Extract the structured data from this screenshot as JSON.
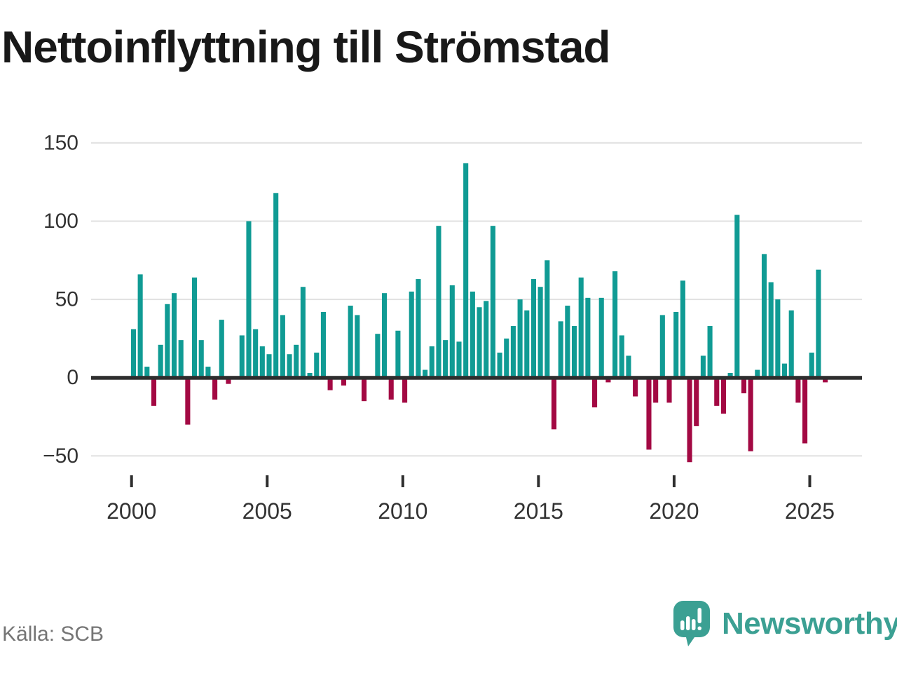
{
  "title": "Nettoinflyttning till Strömstad",
  "source": "Källa: SCB",
  "branding": {
    "name": "Newsworthy",
    "logo_icon": "speech-bubble-bar-chart-icon",
    "logo_color": "#3BA093"
  },
  "chart_data": {
    "type": "bar",
    "title": "Nettoinflyttning till Strömstad",
    "frequency": "quarterly",
    "start_quarter": "2000Q1",
    "end_quarter": "2025Q3",
    "values": [
      31,
      66,
      7,
      -18,
      21,
      47,
      54,
      24,
      -30,
      64,
      24,
      7,
      -14,
      37,
      -4,
      0,
      27,
      100,
      31,
      20,
      15,
      118,
      40,
      15,
      21,
      58,
      3,
      16,
      42,
      -8,
      0,
      -5,
      46,
      40,
      -15,
      0,
      28,
      54,
      -14,
      30,
      -16,
      55,
      63,
      5,
      20,
      97,
      24,
      59,
      23,
      137,
      55,
      45,
      49,
      97,
      16,
      25,
      33,
      50,
      43,
      63,
      58,
      75,
      -33,
      36,
      46,
      33,
      64,
      51,
      -19,
      51,
      -3,
      68,
      27,
      14,
      -12,
      0,
      -46,
      -16,
      40,
      -16,
      42,
      62,
      -54,
      -31,
      14,
      33,
      -18,
      -23,
      3,
      104,
      -10,
      -47,
      5,
      79,
      61,
      50,
      9,
      43,
      -16,
      -42,
      16,
      69,
      -3
    ],
    "x_tick_labels": [
      "2000",
      "2005",
      "2010",
      "2015",
      "2020",
      "2025"
    ],
    "x_tick_years": [
      2000,
      2005,
      2010,
      2015,
      2020,
      2025
    ],
    "y_ticks": [
      150,
      100,
      50,
      0,
      -50
    ],
    "y_tick_labels": [
      "150",
      "100",
      "50",
      "0",
      "−50"
    ],
    "ylim": [
      -60,
      160
    ],
    "xlabel": "",
    "ylabel": "",
    "grid": true,
    "legend": false,
    "colors": {
      "positive": "#109B94",
      "negative": "#A30943",
      "grid": "#E1E1E1",
      "axis": "#2E2E2E",
      "tick_label": "#333333"
    }
  }
}
